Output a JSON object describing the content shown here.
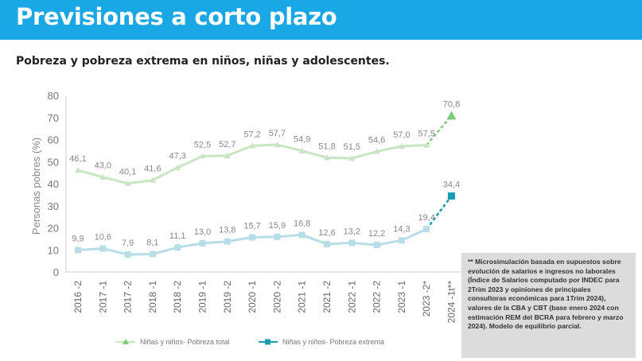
{
  "header": {
    "title": "Previsiones a corto plazo"
  },
  "subtitle": "Pobreza y pobreza extrema en niños, niñas y adolescentes.",
  "note": "** Microsimulación basada en supuestos sobre evolución de salarios e ingresos no laborales (Índice de Salarios computado por INDEC para 2Trim 2023 y opiniones de principales consultoras económicas para 1Trim 2024), valores de la CBA y CBT (base enero 2024 con estimación REM del BCRA para febrero y marzo 2024). Modelo de equilibrio parcial.",
  "colors": {
    "header": "#1aa7e6",
    "total": "#c8e6c2",
    "total_marker": "#7fc97a",
    "extreme": "#b7dde6",
    "extreme_marker": "#1a9bb0"
  },
  "chart_data": {
    "type": "line",
    "categories": [
      "2016 -2",
      "2017 -1",
      "2017 -2",
      "2018 -1",
      "2018 -2",
      "2019 -1",
      "2019 -2",
      "2020 -1",
      "2020 -2",
      "2021 -1",
      "2021 -2",
      "2022 -1",
      "2022 -2",
      "2023 -1",
      "2023 -2*",
      "2024 -1t**"
    ],
    "ylabel": "Personas pobres (%)",
    "ylim": [
      0,
      80
    ],
    "yticks": [
      0,
      10,
      20,
      30,
      40,
      50,
      60,
      70,
      80
    ],
    "grid": false,
    "legend_position": "bottom",
    "series": [
      {
        "name": "Niñas y niños- Pobreza total",
        "values": [
          46.1,
          43.0,
          40.1,
          41.6,
          47.3,
          52.5,
          52.7,
          57.2,
          57.7,
          54.9,
          51.8,
          51.5,
          54.6,
          57.0,
          57.5,
          70.8
        ],
        "labels": [
          "46,1",
          "43,0",
          "40,1",
          "41,6",
          "47,3",
          "52,5",
          "52,7",
          "57,2",
          "57,7",
          "54,9",
          "51,8",
          "51,5",
          "54,6",
          "57,0",
          "57,5",
          "70,8"
        ],
        "marker": "triangle"
      },
      {
        "name": "Niñas y niños- Pobreza extrema",
        "values": [
          9.9,
          10.6,
          7.9,
          8.1,
          11.1,
          13.0,
          13.8,
          15.7,
          15.9,
          16.8,
          12.6,
          13.2,
          12.2,
          14.3,
          19.4,
          34.4
        ],
        "labels": [
          "9,9",
          "10,6",
          "7,9",
          "8,1",
          "11,1",
          "13,0",
          "13,8",
          "15,7",
          "15,9",
          "16,8",
          "12,6",
          "13,2",
          "12,2",
          "14,3",
          "19,4",
          "34,4"
        ],
        "marker": "square"
      }
    ]
  }
}
